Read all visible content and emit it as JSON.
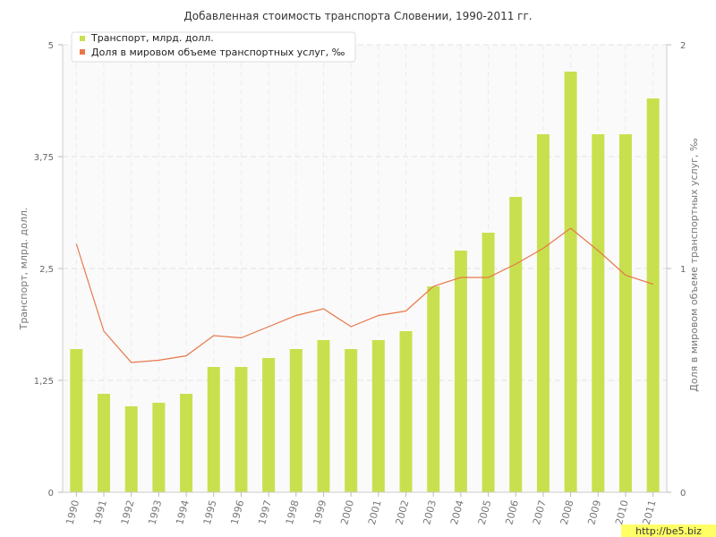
{
  "chart_data": {
    "type": "bar",
    "title": "Добавленная стоимость транспорта Словении, 1990-2011 гг.",
    "categories": [
      "1990",
      "1991",
      "1992",
      "1993",
      "1994",
      "1995",
      "1996",
      "1997",
      "1998",
      "1999",
      "2000",
      "2001",
      "2002",
      "2003",
      "2004",
      "2005",
      "2006",
      "2007",
      "2008",
      "2009",
      "2010",
      "2011"
    ],
    "series": [
      {
        "name": "Транспорт, млрд. долл.",
        "type": "bar",
        "axis": "left",
        "color": "#c8e04e",
        "values": [
          1.6,
          1.1,
          0.96,
          1.0,
          1.1,
          1.4,
          1.4,
          1.5,
          1.6,
          1.7,
          1.6,
          1.7,
          1.8,
          2.3,
          2.7,
          2.9,
          3.3,
          4.0,
          4.7,
          4.0,
          4.0,
          4.4
        ]
      },
      {
        "name": "Доля в мировом объеме транспортных услуг, ‰",
        "type": "line",
        "axis": "right",
        "color": "#e8774a",
        "values": [
          1.11,
          0.72,
          0.58,
          0.59,
          0.61,
          0.7,
          0.69,
          0.74,
          0.79,
          0.82,
          0.74,
          0.79,
          0.81,
          0.92,
          0.96,
          0.96,
          1.02,
          1.09,
          1.18,
          1.08,
          0.97,
          0.93
        ]
      }
    ],
    "ylabel": "Транспорт, млрд. долл.",
    "y2label": "Доля в мировом объеме транспортных услуг, ‰",
    "ylim": [
      0,
      5
    ],
    "y2lim": [
      0,
      2
    ],
    "yticks": [
      "0",
      "1,25",
      "2,5",
      "3,75",
      "5"
    ],
    "y2ticks": [
      "0",
      "1",
      "2"
    ],
    "grid": true,
    "legend_position": "top-left"
  },
  "watermark": "http://be5.biz"
}
